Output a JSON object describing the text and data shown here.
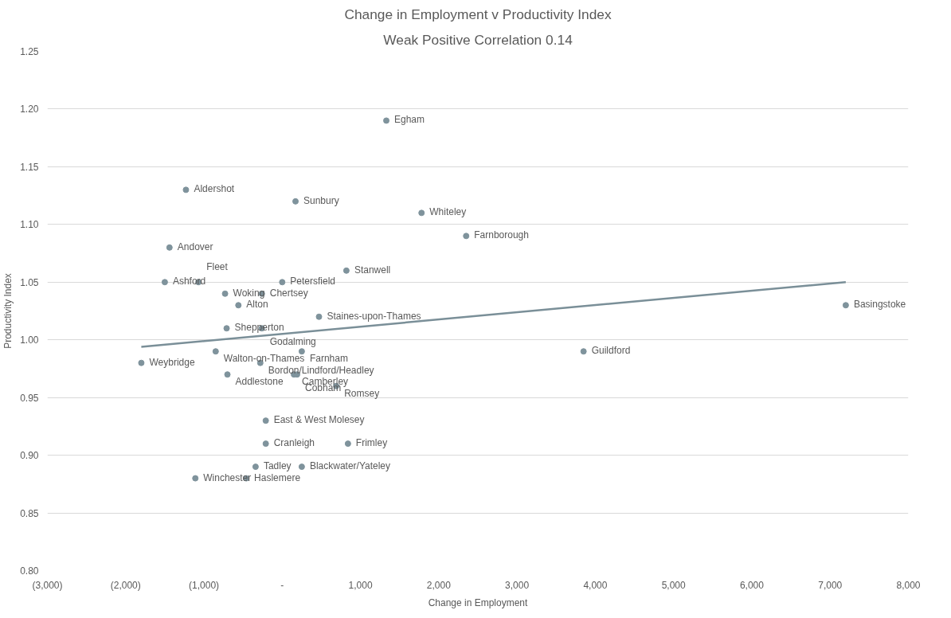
{
  "chart_data": {
    "type": "scatter",
    "title": "Change in Employment v Productivity Index",
    "subtitle": "Weak Positive Correlation 0.14",
    "xlabel": "Change in Employment",
    "ylabel": "Productivity Index",
    "series": [
      {
        "color": "#7f939c",
        "marker": "circle",
        "x": [
          1330,
          -1230,
          170,
          1780,
          2350,
          -1440,
          -1500,
          -1070,
          0,
          820,
          -730,
          -260,
          -560,
          470,
          -710,
          -260,
          7200,
          -850,
          250,
          3850,
          -1800,
          -280,
          -700,
          150,
          190,
          690,
          -210,
          -210,
          840,
          -340,
          250,
          -1110,
          -460
        ],
        "values": [
          1.19,
          1.13,
          1.12,
          1.11,
          1.09,
          1.08,
          1.05,
          1.05,
          1.05,
          1.06,
          1.04,
          1.04,
          1.03,
          1.02,
          1.01,
          1.01,
          1.03,
          0.99,
          0.99,
          0.99,
          0.98,
          0.98,
          0.97,
          0.97,
          0.97,
          0.96,
          0.93,
          0.91,
          0.91,
          0.89,
          0.89,
          0.88,
          0.88
        ],
        "value_labels": [
          "Egham",
          "Aldershot",
          "Sunbury",
          "Whiteley",
          "Farnborough",
          "Andover",
          "Ashford",
          "Fleet",
          "Petersfield",
          "Stanwell",
          "Woking",
          "Chertsey",
          "Alton",
          "Staines-upon-Thames",
          "Shepperton",
          "Godalming",
          "Basingstoke",
          "Walton-on-Thames",
          "Farnham",
          "Guildford",
          "Weybridge",
          "Bordon/Lindford/Headley",
          "Addlestone",
          "Camberley",
          "Cobham",
          "Romsey",
          "East & West Molesey",
          "Cranleigh",
          "Frimley",
          "Tadley",
          "Blackwater/Yateley",
          "Winchester",
          "Haslemere"
        ]
      },
      {
        "type": "line",
        "color": "#7a8f98",
        "x": [
          -1800,
          7200
        ],
        "values": [
          0.994,
          1.05
        ]
      }
    ],
    "xlim": [
      -3000,
      8000
    ],
    "xticks": [
      {
        "value": -3000,
        "label": "(3,000)"
      },
      {
        "value": -2000,
        "label": "(2,000)"
      },
      {
        "value": -1000,
        "label": "(1,000)"
      },
      {
        "value": 0,
        "label": "-"
      },
      {
        "value": 1000,
        "label": "1,000"
      },
      {
        "value": 2000,
        "label": "2,000"
      },
      {
        "value": 3000,
        "label": "3,000"
      },
      {
        "value": 4000,
        "label": "4,000"
      },
      {
        "value": 5000,
        "label": "5,000"
      },
      {
        "value": 6000,
        "label": "6,000"
      },
      {
        "value": 7000,
        "label": "7,000"
      },
      {
        "value": 8000,
        "label": "8,000"
      }
    ],
    "ylim": [
      0.8,
      1.25
    ],
    "yticks": [
      {
        "value": 0.8,
        "label": "0.80"
      },
      {
        "value": 0.85,
        "label": "0.85"
      },
      {
        "value": 0.9,
        "label": "0.90"
      },
      {
        "value": 0.95,
        "label": "0.95"
      },
      {
        "value": 1.0,
        "label": "1.00"
      },
      {
        "value": 1.05,
        "label": "1.05"
      },
      {
        "value": 1.1,
        "label": "1.10"
      },
      {
        "value": 1.15,
        "label": "1.15"
      },
      {
        "value": 1.2,
        "label": "1.20"
      },
      {
        "value": 1.25,
        "label": "1.25"
      }
    ],
    "grid": "y"
  }
}
